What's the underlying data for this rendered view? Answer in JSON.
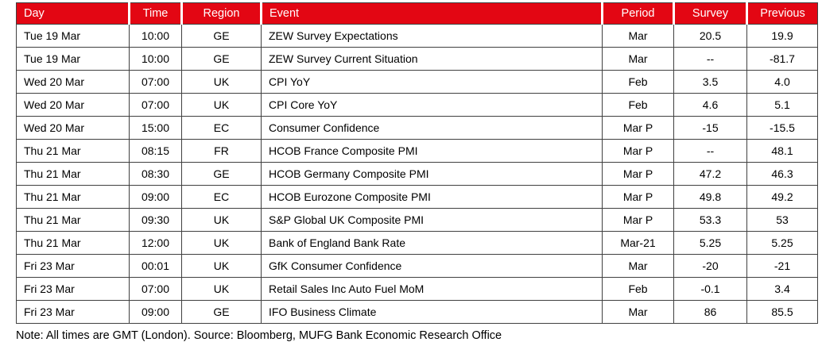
{
  "table": {
    "columns": [
      {
        "key": "day",
        "label": "Day",
        "align": "left"
      },
      {
        "key": "time",
        "label": "Time",
        "align": "center"
      },
      {
        "key": "region",
        "label": "Region",
        "align": "center"
      },
      {
        "key": "event",
        "label": "Event",
        "align": "left"
      },
      {
        "key": "period",
        "label": "Period",
        "align": "center"
      },
      {
        "key": "survey",
        "label": "Survey",
        "align": "center"
      },
      {
        "key": "previous",
        "label": "Previous",
        "align": "center"
      }
    ],
    "rows": [
      [
        "Tue 19 Mar",
        "10:00",
        "GE",
        "ZEW Survey Expectations",
        "Mar",
        "20.5",
        "19.9"
      ],
      [
        "Tue 19 Mar",
        "10:00",
        "GE",
        "ZEW Survey Current Situation",
        "Mar",
        "--",
        "-81.7"
      ],
      [
        "Wed 20 Mar",
        "07:00",
        "UK",
        "CPI YoY",
        "Feb",
        "3.5",
        "4.0"
      ],
      [
        "Wed 20 Mar",
        "07:00",
        "UK",
        "CPI Core YoY",
        "Feb",
        "4.6",
        "5.1"
      ],
      [
        "Wed 20 Mar",
        "15:00",
        "EC",
        "Consumer Confidence",
        "Mar P",
        "-15",
        "-15.5"
      ],
      [
        "Thu 21 Mar",
        "08:15",
        "FR",
        "HCOB France Composite PMI",
        "Mar P",
        "--",
        "48.1"
      ],
      [
        "Thu 21 Mar",
        "08:30",
        "GE",
        "HCOB Germany Composite PMI",
        "Mar P",
        "47.2",
        "46.3"
      ],
      [
        "Thu 21 Mar",
        "09:00",
        "EC",
        "HCOB Eurozone Composite PMI",
        "Mar P",
        "49.8",
        "49.2"
      ],
      [
        "Thu 21 Mar",
        "09:30",
        "UK",
        "S&P Global UK Composite PMI",
        "Mar P",
        "53.3",
        "53"
      ],
      [
        "Thu 21 Mar",
        "12:00",
        "UK",
        "Bank of England Bank Rate",
        "Mar-21",
        "5.25",
        "5.25"
      ],
      [
        "Fri 23 Mar",
        "00:01",
        "UK",
        "GfK Consumer Confidence",
        "Mar",
        "-20",
        "-21"
      ],
      [
        "Fri 23 Mar",
        "07:00",
        "UK",
        "Retail Sales Inc Auto Fuel MoM",
        "Feb",
        "-0.1",
        "3.4"
      ],
      [
        "Fri 23 Mar",
        "09:00",
        "GE",
        "IFO Business Climate",
        "Mar",
        "86",
        "85.5"
      ]
    ]
  },
  "note": "Note: All times are GMT (London). Source: Bloomberg, MUFG Bank Economic Research Office",
  "colors": {
    "header_bg": "#e30613",
    "header_text": "#ffffff",
    "border": "#404040",
    "body_text": "#000000"
  }
}
